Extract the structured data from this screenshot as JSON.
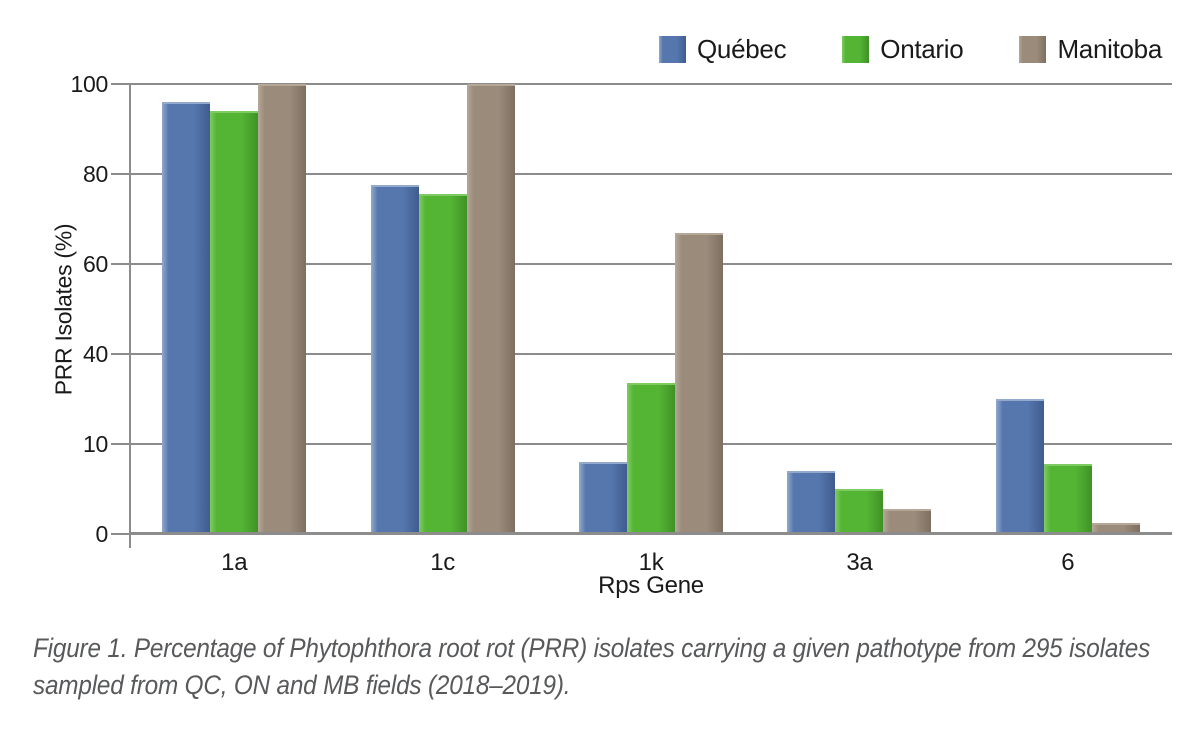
{
  "figure": {
    "caption_line1": "Figure 1. Percentage of Phytophthora root rot (PRR) isolates carrying a given pathotype from 295 isolates",
    "caption_line2": "sampled from QC, ON and MB fields (2018–2019)."
  },
  "chart_data": {
    "type": "bar",
    "title": "",
    "categories": [
      "1a",
      "1c",
      "1k",
      "3a",
      "6"
    ],
    "series": [
      {
        "name": "Québec",
        "color": "#5577AE",
        "color_dark": "#405C8F",
        "color_light": "#93A9CD",
        "values": [
          96,
          77.5,
          16,
          14,
          30
        ]
      },
      {
        "name": "Ontario",
        "color": "#54B434",
        "color_dark": "#3F9226",
        "color_light": "#7ECB63",
        "values": [
          94,
          75.5,
          33.5,
          10,
          15.5
        ]
      },
      {
        "name": "Manitoba",
        "color": "#9A8B7B",
        "color_dark": "#7E7060",
        "color_light": "#B5A898",
        "values": [
          100,
          100,
          67,
          5.5,
          2.5
        ]
      }
    ],
    "xlabel": "Rps Gene",
    "ylabel": "PRR Isolates (%)",
    "ylim": [
      0,
      100
    ],
    "ytick_labels_top_to_bottom": [
      "100",
      "80",
      "60",
      "40",
      "10",
      "0"
    ],
    "grid": true,
    "legend_position": "top-right",
    "gridline_color": "#8C8C8C"
  }
}
